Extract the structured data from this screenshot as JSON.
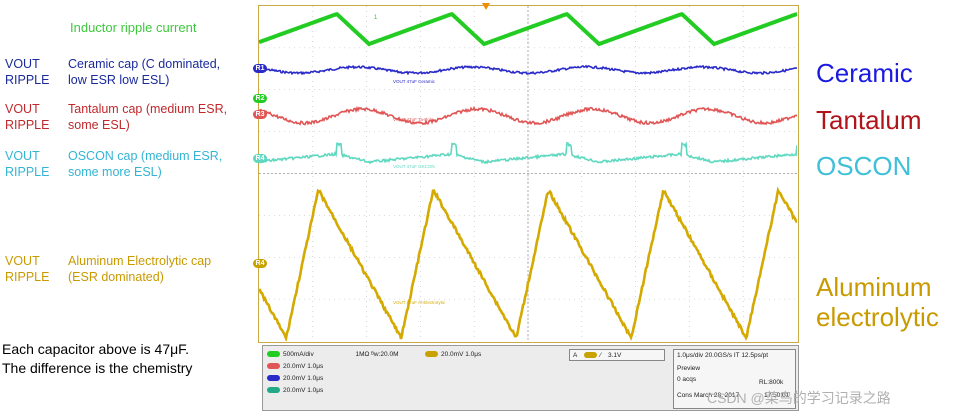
{
  "left_labels": {
    "inductor": "Inductor ripple current",
    "ceramic": {
      "vout": "VOUT\nRIPPLE",
      "desc": "Ceramic cap (C dominated,\nlow ESR low ESL)"
    },
    "tantalum": {
      "vout": "VOUT\nRIPPLE",
      "desc": "Tantalum cap (medium ESR,\nsome ESL)"
    },
    "oscon": {
      "vout": "VOUT\nRIPPLE",
      "desc": "OSCON cap (medium ESR,\nsome more ESL)"
    },
    "aluminum": {
      "vout": "VOUT\nRIPPLE",
      "desc": "Aluminum Electrolytic cap\n(ESR dominated)"
    },
    "note": "Each capacitor above is 47μF.\nThe difference is the chemistry"
  },
  "right_labels": {
    "ceramic": "Ceramic",
    "tantalum": "Tantalum",
    "oscon": "OSCON",
    "aluminum": "Aluminum\nelectrolytic"
  },
  "trace_labels": {
    "ceramic": "VOUT 47uF Ceramic",
    "tantalum": "VOUT 47uF Ta-Poly",
    "oscon": "VOUT 47uF OSCON",
    "aluminum": "VOUT 47uF Al-Electrolytic"
  },
  "channel_markers": {
    "ch1": "1",
    "r1": "R1",
    "r2": "R2",
    "r3": "R3",
    "r4": "R4"
  },
  "status_bar": {
    "ch_rows": [
      {
        "chip": "C3",
        "text": "500mA/div",
        "extra": "1MΩ  ᴮw:20.0M"
      },
      {
        "chip": "R1",
        "text": "20.0mV  1.0μs"
      },
      {
        "chip": "R2",
        "text": "20.0mV  1.0μs"
      },
      {
        "chip": "R3",
        "text": "20.0mV  1.0μs"
      }
    ],
    "r4": {
      "chip": "R4",
      "text": "20.0mV  1.0μs"
    },
    "trigger": {
      "a": "A",
      "chip": "C3",
      "text": "3.1V"
    },
    "timebase": "1.0μs/div   20.0GS/s   IT   12.5ps/pt",
    "preview": "Preview",
    "acqs": "0 acqs",
    "rl": "RL:800k",
    "date": "Cons   March 28, 2017",
    "time": "17:50:01"
  },
  "watermark": "CSDN @菜鸟的学习记录之路",
  "colors": {
    "inductor": "#22cc22",
    "ceramic": "#2a2ac8",
    "tantalum": "#e05555",
    "oscon": "#5fd8c0",
    "aluminum": "#d4a900",
    "label_blue": "#1a2a9a",
    "label_red": "#c0282c",
    "label_cyan": "#34b4d4",
    "label_gold": "#c99a00",
    "big_blue": "#1a1ae0",
    "big_red": "#b0141a",
    "big_cyan": "#3ec0d8",
    "big_gold": "#c99a00"
  }
}
